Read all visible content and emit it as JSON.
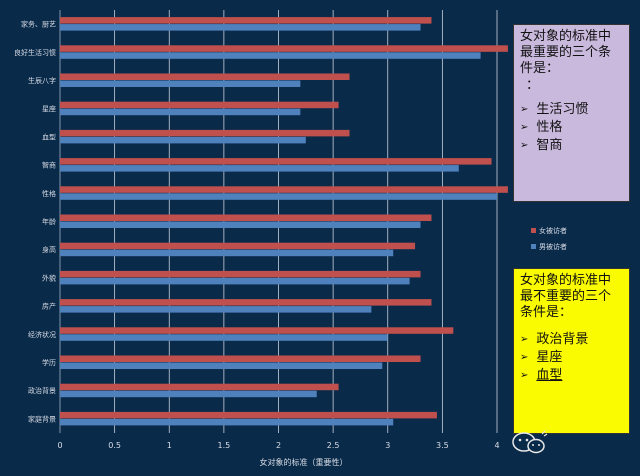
{
  "chart_data": {
    "type": "bar",
    "orientation": "horizontal",
    "categories": [
      "家务、厨艺",
      "良好生活习惯",
      "生辰八字",
      "星座",
      "血型",
      "智商",
      "性格",
      "年龄",
      "身高",
      "外貌",
      "房产",
      "经济状况",
      "学历",
      "政治背景",
      "家庭背景"
    ],
    "series": [
      {
        "name": "女被访者",
        "color": "#c0504d",
        "values": [
          3.4,
          4.1,
          2.65,
          2.55,
          2.65,
          3.95,
          4.1,
          3.4,
          3.25,
          3.3,
          3.4,
          3.6,
          3.3,
          2.55,
          3.45
        ]
      },
      {
        "name": "男被访者",
        "color": "#4f81bd",
        "values": [
          3.3,
          3.85,
          2.2,
          2.2,
          2.25,
          3.65,
          4.0,
          3.3,
          3.05,
          3.2,
          2.85,
          3.0,
          2.95,
          2.35,
          3.05
        ]
      }
    ],
    "xlim": [
      0,
      4
    ],
    "xticks": [
      "0",
      "0.5",
      "1",
      "1.5",
      "2",
      "2.5",
      "3",
      "3.5",
      "4"
    ],
    "xlabel": "女对象的标准（重要性）",
    "ylabel": "",
    "legend_position": "right"
  },
  "panels": {
    "most_important": {
      "title": "女对象的标准中最重要的三个条件是：",
      "subtitle": "：",
      "items": [
        "生活习惯",
        "性格",
        "智商"
      ]
    },
    "least_important": {
      "title": "女对象的标准中最不重要的三个条件是：",
      "items": [
        "政治背景",
        "星座",
        "血型"
      ]
    }
  },
  "colors": {
    "background": "#0a2a4a",
    "panel_top": "#c9b9dd",
    "panel_bottom": "#fafa00"
  },
  "watermark_icon": "wechat-icon"
}
